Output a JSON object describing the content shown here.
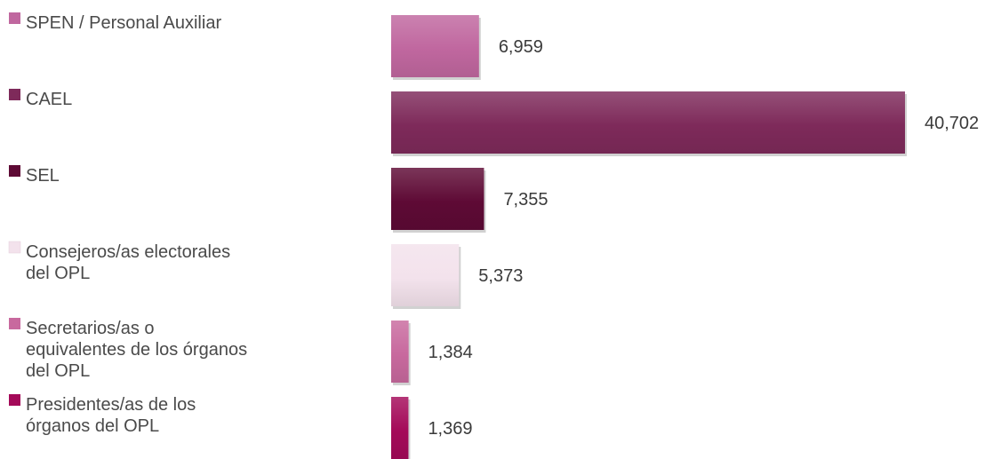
{
  "chart_data": {
    "type": "bar",
    "orientation": "horizontal",
    "grid": false,
    "legend_position": "left",
    "xlim": [
      0,
      40702
    ],
    "categories": [
      "SPEN / Personal Auxiliar",
      "CAEL",
      "SEL",
      "Consejeros/as electorales del OPL",
      "Secretarios/as o equivalentes de los órganos del OPL",
      "Presidentes/as de los órganos del OPL"
    ],
    "legend_lines": [
      [
        "SPEN / Personal Auxiliar"
      ],
      [
        "CAEL"
      ],
      [
        "SEL"
      ],
      [
        "Consejeros/as electorales",
        "del OPL"
      ],
      [
        "Secretarios/as o",
        "equivalentes de los órganos",
        "del OPL"
      ],
      [
        "Presidentes/as de los",
        "órganos del OPL"
      ]
    ],
    "values": [
      6959,
      40702,
      7355,
      5373,
      1384,
      1369
    ],
    "value_labels": [
      "6,959",
      "40,702",
      "7,355",
      "5,373",
      "1,384",
      "1,369"
    ],
    "colors": [
      "#c0679f",
      "#7e2a5a",
      "#5e0a35",
      "#f3e2ec",
      "#c8699e",
      "#a40a59"
    ]
  }
}
